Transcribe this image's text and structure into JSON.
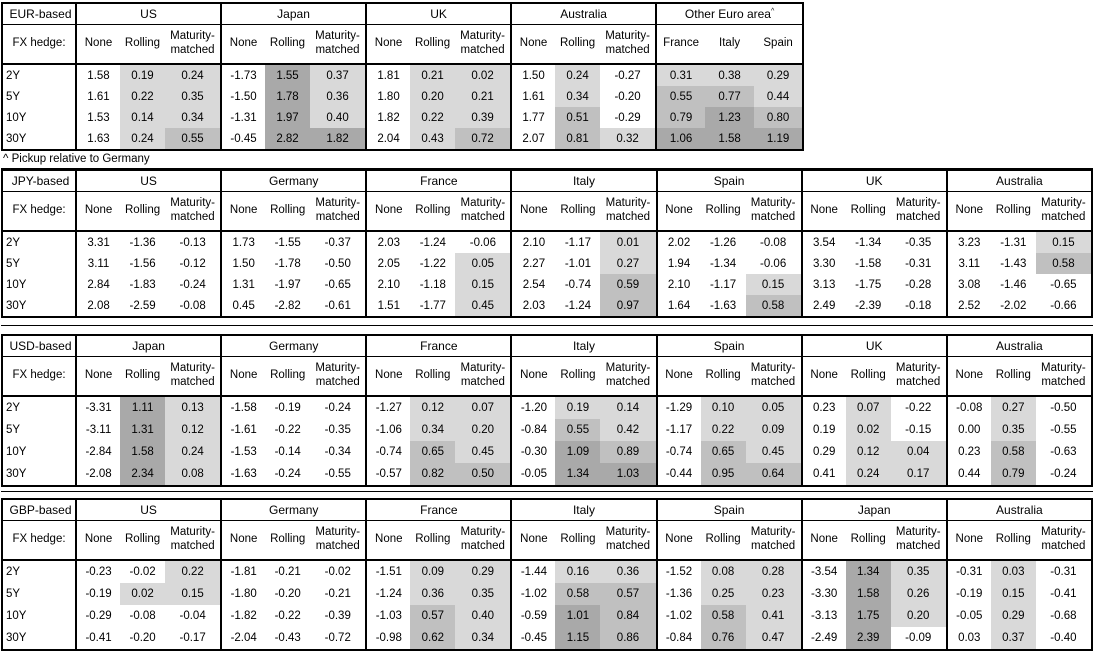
{
  "labels": {
    "fx_hedge": "FX hedge:",
    "col_headers": [
      "None",
      "Rolling",
      "Maturity-matched"
    ],
    "row_labels": [
      "2Y",
      "5Y",
      "10Y",
      "30Y"
    ]
  },
  "colors": {
    "shade_light": "#d9d9d9",
    "shade_medium": "#c0c0c0",
    "shade_dark": "#a9a9a9",
    "border": "#000000"
  },
  "footnote": "^ Pickup relative to Germany",
  "tables": [
    {
      "base": "EUR-based",
      "footnote_after": true,
      "groups": [
        {
          "name": "US",
          "rows": [
            [
              "1.58",
              "0.19",
              "0.24"
            ],
            [
              "1.61",
              "0.22",
              "0.35"
            ],
            [
              "1.53",
              "0.14",
              "0.34"
            ],
            [
              "1.63",
              "0.24",
              "0.55"
            ]
          ]
        },
        {
          "name": "Japan",
          "rows": [
            [
              "-1.73",
              "1.55",
              "0.37"
            ],
            [
              "-1.50",
              "1.78",
              "0.36"
            ],
            [
              "-1.31",
              "1.97",
              "0.40"
            ],
            [
              "-0.45",
              "2.82",
              "1.82"
            ]
          ]
        },
        {
          "name": "UK",
          "rows": [
            [
              "1.81",
              "0.21",
              "0.02"
            ],
            [
              "1.80",
              "0.20",
              "0.21"
            ],
            [
              "1.82",
              "0.22",
              "0.39"
            ],
            [
              "2.04",
              "0.43",
              "0.72"
            ]
          ]
        },
        {
          "name": "Australia",
          "rows": [
            [
              "1.50",
              "0.24",
              "-0.27"
            ],
            [
              "1.61",
              "0.34",
              "-0.20"
            ],
            [
              "1.77",
              "0.51",
              "-0.29"
            ],
            [
              "2.07",
              "0.81",
              "0.32"
            ]
          ]
        },
        {
          "name": "Other Euro area",
          "sup": "^",
          "shade_all": true,
          "cols": [
            "France",
            "Italy",
            "Spain"
          ],
          "rows": [
            [
              "0.31",
              "0.38",
              "0.29"
            ],
            [
              "0.55",
              "0.77",
              "0.44"
            ],
            [
              "0.79",
              "1.23",
              "0.80"
            ],
            [
              "1.06",
              "1.58",
              "1.19"
            ]
          ]
        }
      ]
    },
    {
      "base": "JPY-based",
      "groups": [
        {
          "name": "US",
          "rows": [
            [
              "3.31",
              "-1.36",
              "-0.13"
            ],
            [
              "3.11",
              "-1.56",
              "-0.12"
            ],
            [
              "2.84",
              "-1.83",
              "-0.24"
            ],
            [
              "2.08",
              "-2.59",
              "-0.08"
            ]
          ]
        },
        {
          "name": "Germany",
          "rows": [
            [
              "1.73",
              "-1.55",
              "-0.37"
            ],
            [
              "1.50",
              "-1.78",
              "-0.50"
            ],
            [
              "1.31",
              "-1.97",
              "-0.65"
            ],
            [
              "0.45",
              "-2.82",
              "-0.61"
            ]
          ]
        },
        {
          "name": "France",
          "rows": [
            [
              "2.03",
              "-1.24",
              "-0.06"
            ],
            [
              "2.05",
              "-1.22",
              "0.05"
            ],
            [
              "2.10",
              "-1.18",
              "0.15"
            ],
            [
              "1.51",
              "-1.77",
              "0.45"
            ]
          ]
        },
        {
          "name": "Italy",
          "rows": [
            [
              "2.10",
              "-1.17",
              "0.01"
            ],
            [
              "2.27",
              "-1.01",
              "0.27"
            ],
            [
              "2.54",
              "-0.74",
              "0.59"
            ],
            [
              "2.03",
              "-1.24",
              "0.97"
            ]
          ]
        },
        {
          "name": "Spain",
          "rows": [
            [
              "2.02",
              "-1.26",
              "-0.08"
            ],
            [
              "1.94",
              "-1.34",
              "-0.06"
            ],
            [
              "2.10",
              "-1.17",
              "0.15"
            ],
            [
              "1.64",
              "-1.63",
              "0.58"
            ]
          ]
        },
        {
          "name": "UK",
          "rows": [
            [
              "3.54",
              "-1.34",
              "-0.35"
            ],
            [
              "3.30",
              "-1.58",
              "-0.31"
            ],
            [
              "3.13",
              "-1.75",
              "-0.28"
            ],
            [
              "2.49",
              "-2.39",
              "-0.18"
            ]
          ]
        },
        {
          "name": "Australia",
          "rows": [
            [
              "3.23",
              "-1.31",
              "0.15"
            ],
            [
              "3.11",
              "-1.43",
              "0.58"
            ],
            [
              "3.08",
              "-1.46",
              "-0.65"
            ],
            [
              "2.52",
              "-2.02",
              "-0.66"
            ]
          ]
        }
      ]
    },
    {
      "base": "USD-based",
      "groups": [
        {
          "name": "Japan",
          "rows": [
            [
              "-3.31",
              "1.11",
              "0.13"
            ],
            [
              "-3.11",
              "1.31",
              "0.12"
            ],
            [
              "-2.84",
              "1.58",
              "0.24"
            ],
            [
              "-2.08",
              "2.34",
              "0.08"
            ]
          ]
        },
        {
          "name": "Germany",
          "rows": [
            [
              "-1.58",
              "-0.19",
              "-0.24"
            ],
            [
              "-1.61",
              "-0.22",
              "-0.35"
            ],
            [
              "-1.53",
              "-0.14",
              "-0.34"
            ],
            [
              "-1.63",
              "-0.24",
              "-0.55"
            ]
          ]
        },
        {
          "name": "France",
          "rows": [
            [
              "-1.27",
              "0.12",
              "0.07"
            ],
            [
              "-1.06",
              "0.34",
              "0.20"
            ],
            [
              "-0.74",
              "0.65",
              "0.45"
            ],
            [
              "-0.57",
              "0.82",
              "0.50"
            ]
          ]
        },
        {
          "name": "Italy",
          "rows": [
            [
              "-1.20",
              "0.19",
              "0.14"
            ],
            [
              "-0.84",
              "0.55",
              "0.42"
            ],
            [
              "-0.30",
              "1.09",
              "0.89"
            ],
            [
              "-0.05",
              "1.34",
              "1.03"
            ]
          ]
        },
        {
          "name": "Spain",
          "rows": [
            [
              "-1.29",
              "0.10",
              "0.05"
            ],
            [
              "-1.17",
              "0.22",
              "0.09"
            ],
            [
              "-0.74",
              "0.65",
              "0.45"
            ],
            [
              "-0.44",
              "0.95",
              "0.64"
            ]
          ]
        },
        {
          "name": "UK",
          "rows": [
            [
              "0.23",
              "0.07",
              "-0.22"
            ],
            [
              "0.19",
              "0.02",
              "-0.15"
            ],
            [
              "0.29",
              "0.12",
              "0.04"
            ],
            [
              "0.41",
              "0.24",
              "0.17"
            ]
          ]
        },
        {
          "name": "Australia",
          "rows": [
            [
              "-0.08",
              "0.27",
              "-0.50"
            ],
            [
              "0.00",
              "0.35",
              "-0.55"
            ],
            [
              "0.23",
              "0.58",
              "-0.63"
            ],
            [
              "0.44",
              "0.79",
              "-0.24"
            ]
          ]
        }
      ]
    },
    {
      "base": "GBP-based",
      "groups": [
        {
          "name": "US",
          "rows": [
            [
              "-0.23",
              "-0.02",
              "0.22"
            ],
            [
              "-0.19",
              "0.02",
              "0.15"
            ],
            [
              "-0.29",
              "-0.08",
              "-0.04"
            ],
            [
              "-0.41",
              "-0.20",
              "-0.17"
            ]
          ]
        },
        {
          "name": "Germany",
          "rows": [
            [
              "-1.81",
              "-0.21",
              "-0.02"
            ],
            [
              "-1.80",
              "-0.20",
              "-0.21"
            ],
            [
              "-1.82",
              "-0.22",
              "-0.39"
            ],
            [
              "-2.04",
              "-0.43",
              "-0.72"
            ]
          ]
        },
        {
          "name": "France",
          "rows": [
            [
              "-1.51",
              "0.09",
              "0.29"
            ],
            [
              "-1.24",
              "0.36",
              "0.35"
            ],
            [
              "-1.03",
              "0.57",
              "0.40"
            ],
            [
              "-0.98",
              "0.62",
              "0.34"
            ]
          ]
        },
        {
          "name": "Italy",
          "rows": [
            [
              "-1.44",
              "0.16",
              "0.36"
            ],
            [
              "-1.02",
              "0.58",
              "0.57"
            ],
            [
              "-0.59",
              "1.01",
              "0.84"
            ],
            [
              "-0.45",
              "1.15",
              "0.86"
            ]
          ]
        },
        {
          "name": "Spain",
          "rows": [
            [
              "-1.52",
              "0.08",
              "0.28"
            ],
            [
              "-1.36",
              "0.25",
              "0.23"
            ],
            [
              "-1.02",
              "0.58",
              "0.41"
            ],
            [
              "-0.84",
              "0.76",
              "0.47"
            ]
          ]
        },
        {
          "name": "Japan",
          "rows": [
            [
              "-3.54",
              "1.34",
              "0.35"
            ],
            [
              "-3.30",
              "1.58",
              "0.26"
            ],
            [
              "-3.13",
              "1.75",
              "0.20"
            ],
            [
              "-2.49",
              "2.39",
              "-0.09"
            ]
          ]
        },
        {
          "name": "Australia",
          "rows": [
            [
              "-0.31",
              "0.03",
              "-0.31"
            ],
            [
              "-0.19",
              "0.15",
              "-0.41"
            ],
            [
              "-0.05",
              "0.29",
              "-0.68"
            ],
            [
              "0.03",
              "0.37",
              "-0.40"
            ]
          ]
        }
      ]
    }
  ]
}
